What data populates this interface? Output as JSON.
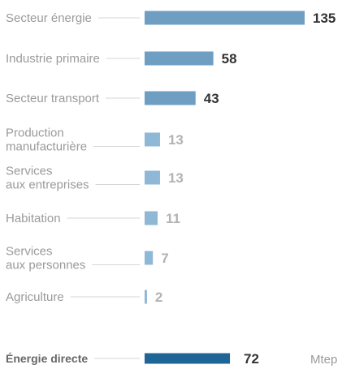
{
  "chart_data": {
    "type": "bar",
    "orientation": "horizontal",
    "categories": [
      [
        "Secteur énergie"
      ],
      [
        "Industrie primaire"
      ],
      [
        "Secteur transport"
      ],
      [
        "Production",
        "manufacturière"
      ],
      [
        "Services",
        "aux entreprises"
      ],
      [
        "Habitation"
      ],
      [
        "Services",
        "aux personnes"
      ],
      [
        "Agriculture"
      ]
    ],
    "values": [
      135,
      58,
      43,
      13,
      13,
      11,
      7,
      2
    ],
    "value_labels": [
      "135",
      "58",
      "43",
      "13",
      "13",
      "11",
      "7",
      "2"
    ],
    "total": {
      "label": "Énergie directe",
      "value": 72,
      "value_label": "72",
      "unit": "Mtep"
    },
    "colors": {
      "bar_dark": "#6e9ec2",
      "bar_light": "#8fb8d6",
      "bar_total": "#1f6596",
      "value_dark": "#333333",
      "value_light": "#b3b3b3",
      "label": "#9a9a9a",
      "label_total": "#666666"
    }
  }
}
